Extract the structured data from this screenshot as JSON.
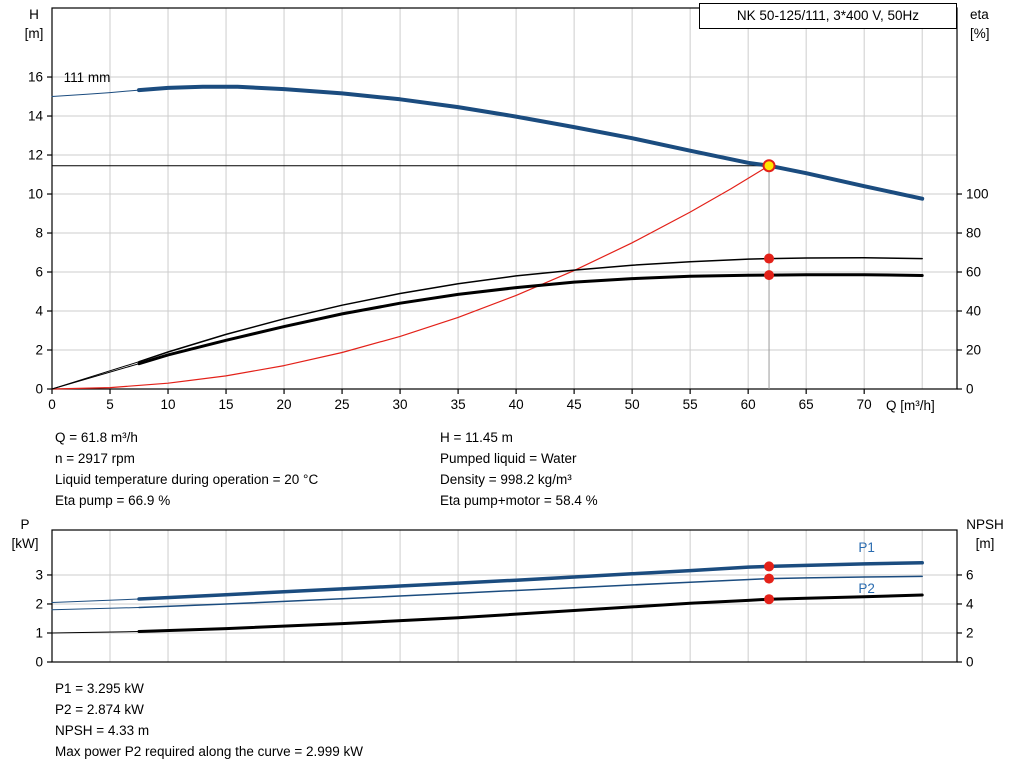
{
  "header": {
    "title_box": "NK 50-125/111, 3*400 V, 50Hz"
  },
  "axes_labels": {
    "h": "H",
    "h_unit": "[m]",
    "eta": "eta",
    "eta_unit": "[%]",
    "q": "Q [m³/h]",
    "p": "P",
    "p_unit": "[kW]",
    "npsh": "NPSH",
    "npsh_unit": "[m]"
  },
  "info_top": {
    "left": [
      "Q = 61.8 m³/h",
      "n = 2917 rpm",
      "Liquid temperature during operation = 20 °C",
      "Eta pump = 66.9 %"
    ],
    "right": [
      "H = 11.45 m",
      "Pumped liquid = Water",
      "Density = 998.2 kg/m³",
      "Eta pump+motor = 58.4 %"
    ]
  },
  "info_bottom": [
    "P1 = 3.295 kW",
    "P2 = 2.874 kW",
    "NPSH = 4.33 m",
    "Max power P2 required along the curve = 2.999 kW"
  ],
  "colors": {
    "curve_blue": "#1b4c7f",
    "label_blue": "#2b6cb0",
    "red": "#e32119",
    "yellow": "#ffe600",
    "grid": "#cdcdcd",
    "frame": "#000000",
    "duty_line": "#9a9a9a"
  },
  "chart_data": [
    {
      "id": "qh",
      "type": "line",
      "title": "NK 50-125/111, 3*400 V, 50Hz",
      "xlabel": "Q [m³/h]",
      "ylabel_left": "H [m]",
      "ylabel_right": "eta [%]",
      "xlim": [
        0,
        78
      ],
      "x_ticks": [
        5,
        10,
        15,
        20,
        25,
        30,
        35,
        40,
        45,
        50,
        55,
        60,
        65,
        70,
        75
      ],
      "x_label_ticks": [
        0,
        5,
        10,
        15,
        20,
        25,
        30,
        35,
        40,
        45,
        50,
        55,
        60,
        65,
        70
      ],
      "show_x_labels": true,
      "left_lim": [
        0,
        19.54
      ],
      "left_ticks": [
        0,
        2,
        4,
        6,
        8,
        10,
        12,
        14,
        16
      ],
      "right_lim": [
        0,
        195.4
      ],
      "right_ticks": [
        0,
        20,
        40,
        60,
        80,
        100
      ],
      "grid": true,
      "series": [
        {
          "name": "pump-curve-lead",
          "axis": "left",
          "color": "#1b4c7f",
          "width": 1,
          "points": [
            [
              0,
              15.0
            ],
            [
              3,
              15.12
            ],
            [
              5,
              15.2
            ],
            [
              7.5,
              15.33
            ]
          ]
        },
        {
          "name": "pump-curve-111mm",
          "axis": "left",
          "color": "#1b4c7f",
          "width": 4,
          "points": [
            [
              7.5,
              15.33
            ],
            [
              10,
              15.44
            ],
            [
              13,
              15.5
            ],
            [
              16,
              15.5
            ],
            [
              20,
              15.38
            ],
            [
              25,
              15.16
            ],
            [
              30,
              14.86
            ],
            [
              35,
              14.46
            ],
            [
              40,
              13.97
            ],
            [
              45,
              13.43
            ],
            [
              50,
              12.86
            ],
            [
              55,
              12.22
            ],
            [
              60,
              11.6
            ],
            [
              61.8,
              11.45
            ],
            [
              65,
              11.07
            ],
            [
              70,
              10.4
            ],
            [
              75,
              9.76
            ]
          ]
        },
        {
          "name": "system-curve",
          "axis": "left",
          "color": "#e32119",
          "width": 1.2,
          "points": [
            [
              0,
              0
            ],
            [
              5,
              0.07
            ],
            [
              10,
              0.3
            ],
            [
              15,
              0.67
            ],
            [
              20,
              1.2
            ],
            [
              25,
              1.87
            ],
            [
              30,
              2.7
            ],
            [
              35,
              3.67
            ],
            [
              40,
              4.8
            ],
            [
              45,
              6.07
            ],
            [
              50,
              7.5
            ],
            [
              55,
              9.07
            ],
            [
              58.5,
              10.26
            ],
            [
              61.8,
              11.45
            ]
          ]
        },
        {
          "name": "eta-pump-lead",
          "axis": "right",
          "color": "#000000",
          "width": 1,
          "points": [
            [
              0,
              0
            ],
            [
              7.5,
              14
            ]
          ]
        },
        {
          "name": "eta-pump-curve",
          "axis": "right",
          "color": "#000000",
          "width": 1.5,
          "points": [
            [
              7.5,
              14
            ],
            [
              10,
              19
            ],
            [
              15,
              28
            ],
            [
              20,
              36
            ],
            [
              25,
              43
            ],
            [
              30,
              49
            ],
            [
              35,
              54
            ],
            [
              40,
              58
            ],
            [
              45,
              61
            ],
            [
              50,
              63.5
            ],
            [
              55,
              65.3
            ],
            [
              60,
              66.6
            ],
            [
              61.8,
              66.9
            ],
            [
              65,
              67.2
            ],
            [
              70,
              67.3
            ],
            [
              75,
              66.9
            ]
          ]
        },
        {
          "name": "eta-pump-motor-lead",
          "axis": "right",
          "color": "#000000",
          "width": 1,
          "points": [
            [
              0,
              0
            ],
            [
              7.5,
              13
            ]
          ]
        },
        {
          "name": "eta-pump-motor-curve",
          "axis": "right",
          "color": "#000000",
          "width": 3,
          "points": [
            [
              7.5,
              13
            ],
            [
              10,
              17.5
            ],
            [
              15,
              25
            ],
            [
              20,
              32
            ],
            [
              25,
              38.5
            ],
            [
              30,
              44
            ],
            [
              35,
              48.5
            ],
            [
              40,
              52
            ],
            [
              45,
              54.8
            ],
            [
              50,
              56.6
            ],
            [
              55,
              57.8
            ],
            [
              60,
              58.3
            ],
            [
              61.8,
              58.4
            ],
            [
              65,
              58.6
            ],
            [
              70,
              58.6
            ],
            [
              75,
              58.2
            ]
          ]
        }
      ],
      "duty_point": {
        "q": 61.8,
        "h": 11.45
      },
      "dot_points": [
        {
          "name": "eta-pump-dot",
          "q": 61.8,
          "v": 66.9,
          "axis": "right"
        },
        {
          "name": "eta-pump-motor-dot",
          "q": 61.8,
          "v": 58.4,
          "axis": "right"
        }
      ],
      "annotations": [
        {
          "name": "impeller-diameter-label",
          "text": "111 mm",
          "q": 1.0,
          "v": 15.75,
          "axis": "left",
          "color": "#000000",
          "anchor": "start"
        }
      ]
    },
    {
      "id": "power",
      "type": "line",
      "xlabel": "",
      "ylabel_left": "P [kW]",
      "ylabel_right": "NPSH [m]",
      "xlim": [
        0,
        78
      ],
      "x_ticks": [
        5,
        10,
        15,
        20,
        25,
        30,
        35,
        40,
        45,
        50,
        55,
        60,
        65,
        70,
        75
      ],
      "show_x_labels": false,
      "left_lim": [
        0,
        4.55
      ],
      "left_ticks": [
        0,
        1,
        2,
        3
      ],
      "right_lim": [
        0,
        9.1
      ],
      "right_ticks": [
        0,
        2,
        4,
        6
      ],
      "grid": true,
      "series": [
        {
          "name": "p1-lead",
          "axis": "left",
          "color": "#1b4c7f",
          "width": 1,
          "points": [
            [
              0,
              2.05
            ],
            [
              7.5,
              2.17
            ]
          ]
        },
        {
          "name": "p1-curve",
          "axis": "left",
          "color": "#1b4c7f",
          "width": 3.5,
          "points": [
            [
              7.5,
              2.17
            ],
            [
              15,
              2.32
            ],
            [
              20,
              2.42
            ],
            [
              25,
              2.52
            ],
            [
              30,
              2.62
            ],
            [
              35,
              2.72
            ],
            [
              40,
              2.82
            ],
            [
              45,
              2.93
            ],
            [
              50,
              3.04
            ],
            [
              55,
              3.15
            ],
            [
              60,
              3.27
            ],
            [
              61.8,
              3.295
            ],
            [
              65,
              3.33
            ],
            [
              70,
              3.38
            ],
            [
              75,
              3.42
            ]
          ]
        },
        {
          "name": "p2-lead",
          "axis": "left",
          "color": "#1b4c7f",
          "width": 1,
          "points": [
            [
              0,
              1.8
            ],
            [
              7.5,
              1.88
            ]
          ]
        },
        {
          "name": "p2-curve",
          "axis": "left",
          "color": "#1b4c7f",
          "width": 1.5,
          "points": [
            [
              7.5,
              1.88
            ],
            [
              15,
              2.0
            ],
            [
              25,
              2.18
            ],
            [
              35,
              2.37
            ],
            [
              45,
              2.56
            ],
            [
              55,
              2.75
            ],
            [
              61.8,
              2.874
            ],
            [
              65,
              2.9
            ],
            [
              70,
              2.93
            ],
            [
              75,
              2.95
            ]
          ]
        },
        {
          "name": "npsh-lead",
          "axis": "right",
          "color": "#000000",
          "width": 1,
          "points": [
            [
              0,
              2.0
            ],
            [
              7.5,
              2.1
            ]
          ]
        },
        {
          "name": "npsh-curve",
          "axis": "right",
          "color": "#000000",
          "width": 3,
          "points": [
            [
              7.5,
              2.1
            ],
            [
              15,
              2.3
            ],
            [
              25,
              2.65
            ],
            [
              35,
              3.05
            ],
            [
              45,
              3.55
            ],
            [
              55,
              4.05
            ],
            [
              60,
              4.25
            ],
            [
              61.8,
              4.33
            ],
            [
              65,
              4.4
            ],
            [
              70,
              4.5
            ],
            [
              75,
              4.62
            ]
          ]
        }
      ],
      "dot_points": [
        {
          "name": "p1-dot",
          "q": 61.8,
          "v": 3.295,
          "axis": "left"
        },
        {
          "name": "p2-dot",
          "q": 61.8,
          "v": 2.874,
          "axis": "left"
        },
        {
          "name": "npsh-dot",
          "q": 61.8,
          "v": 4.33,
          "axis": "right"
        }
      ],
      "annotations": [
        {
          "name": "p1-label",
          "text": "P1",
          "q": 69.5,
          "v": 3.79,
          "axis": "left",
          "color": "#2b6cb0",
          "anchor": "start"
        },
        {
          "name": "p2-label",
          "text": "P2",
          "q": 69.5,
          "v": 2.38,
          "axis": "left",
          "color": "#2b6cb0",
          "anchor": "start"
        }
      ]
    }
  ]
}
